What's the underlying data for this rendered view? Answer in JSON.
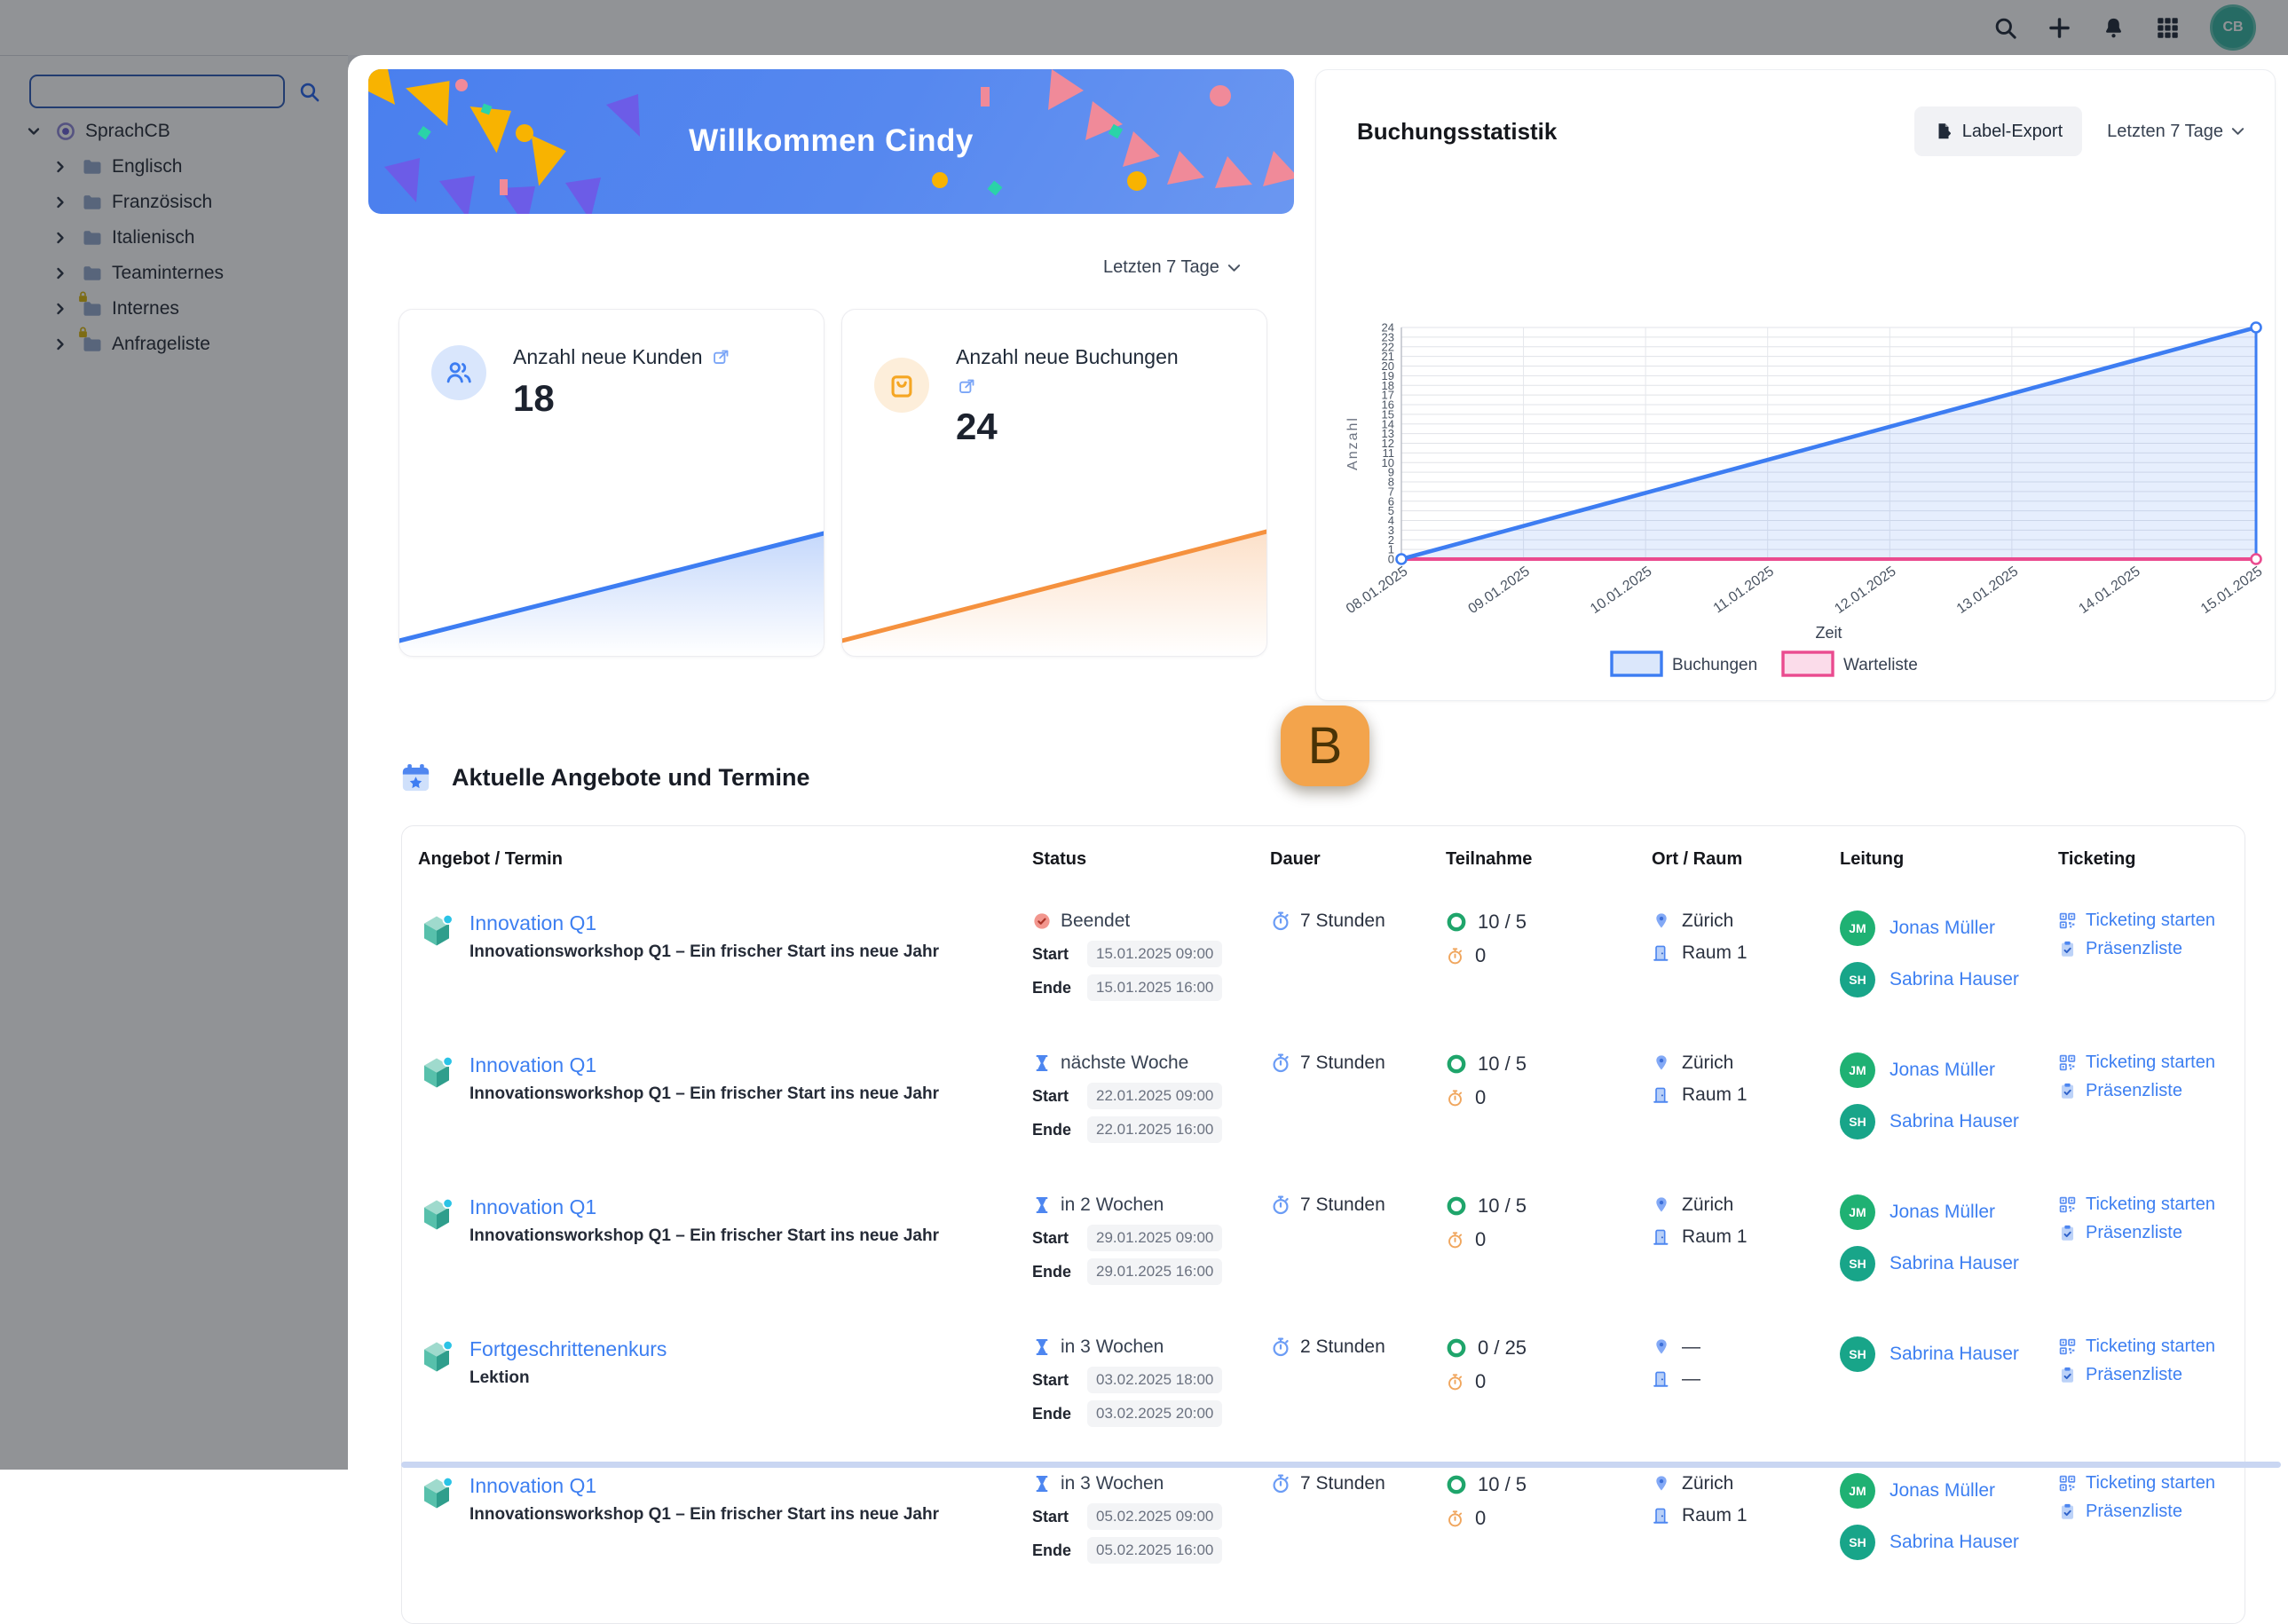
{
  "topbar": {
    "icons": [
      "search",
      "plus",
      "bell",
      "grid"
    ],
    "avatar_initials": "CB"
  },
  "sidebar": {
    "tabs": [
      "tree",
      "archive",
      "trash",
      "home"
    ],
    "search": {
      "value": "",
      "placeholder": ""
    },
    "tree": {
      "root": {
        "label": "SprachCB"
      },
      "items": [
        {
          "label": "Englisch",
          "locked": false
        },
        {
          "label": "Französisch",
          "locked": false
        },
        {
          "label": "Italienisch",
          "locked": false
        },
        {
          "label": "Teaminternes",
          "locked": false
        },
        {
          "label": "Internes",
          "locked": true
        },
        {
          "label": "Anfrageliste",
          "locked": true
        }
      ]
    }
  },
  "main": {
    "welcome": {
      "title": "Willkommen Cindy"
    },
    "stats": {
      "range_label": "Letzten 7 Tage",
      "cards": [
        {
          "label": "Anzahl neue Kunden",
          "value": "18",
          "accent": "#3d7df2",
          "icon": "users",
          "link_inline": true
        },
        {
          "label": "Anzahl neue Buchungen",
          "value": "24",
          "accent": "#f5913e",
          "icon": "bag",
          "link_inline": false
        }
      ]
    },
    "chart_card": {
      "title": "Buchungsstatistik",
      "export_label": "Label-Export",
      "range_label": "Letzten 7 Tage"
    },
    "marker": {
      "label": "B"
    },
    "section": {
      "title": "Aktuelle Angebote und Termine"
    },
    "table": {
      "headers": [
        "Angebot / Termin",
        "Status",
        "Dauer",
        "Teilnahme",
        "Ort / Raum",
        "Leitung",
        "Ticketing"
      ],
      "labels": {
        "start": "Start",
        "ende": "Ende"
      },
      "rows": [
        {
          "title": "Innovation Q1",
          "subtitle": "Innovationsworkshop Q1 – Ein frischer Start ins neue Jahr",
          "status": {
            "type": "beendet",
            "label": "Beendet",
            "start": "15.01.2025 09:00",
            "ende": "15.01.2025 16:00"
          },
          "duration": "7 Stunden",
          "participation": {
            "booked": "10 / 5",
            "waitlist": "0"
          },
          "location": {
            "city": "Zürich",
            "room": "Raum 1"
          },
          "leaders": [
            {
              "initials": "JM",
              "name": "Jonas Müller"
            },
            {
              "initials": "SH",
              "name": "Sabrina Hauser"
            }
          ],
          "ticketing": [
            "Ticketing starten",
            "Präsenzliste"
          ]
        },
        {
          "title": "Innovation Q1",
          "subtitle": "Innovationsworkshop Q1 – Ein frischer Start ins neue Jahr",
          "status": {
            "type": "upcoming",
            "label": "nächste Woche",
            "start": "22.01.2025 09:00",
            "ende": "22.01.2025 16:00"
          },
          "duration": "7 Stunden",
          "participation": {
            "booked": "10 / 5",
            "waitlist": "0"
          },
          "location": {
            "city": "Zürich",
            "room": "Raum 1"
          },
          "leaders": [
            {
              "initials": "JM",
              "name": "Jonas Müller"
            },
            {
              "initials": "SH",
              "name": "Sabrina Hauser"
            }
          ],
          "ticketing": [
            "Ticketing starten",
            "Präsenzliste"
          ]
        },
        {
          "title": "Innovation Q1",
          "subtitle": "Innovationsworkshop Q1 – Ein frischer Start ins neue Jahr",
          "status": {
            "type": "upcoming",
            "label": "in 2 Wochen",
            "start": "29.01.2025 09:00",
            "ende": "29.01.2025 16:00"
          },
          "duration": "7 Stunden",
          "participation": {
            "booked": "10 / 5",
            "waitlist": "0"
          },
          "location": {
            "city": "Zürich",
            "room": "Raum 1"
          },
          "leaders": [
            {
              "initials": "JM",
              "name": "Jonas Müller"
            },
            {
              "initials": "SH",
              "name": "Sabrina Hauser"
            }
          ],
          "ticketing": [
            "Ticketing starten",
            "Präsenzliste"
          ]
        },
        {
          "title": "Fortgeschrittenenkurs",
          "subtitle": "Lektion",
          "status": {
            "type": "upcoming",
            "label": "in 3 Wochen",
            "start": "03.02.2025 18:00",
            "ende": "03.02.2025 20:00"
          },
          "duration": "2 Stunden",
          "participation": {
            "booked": "0 / 25",
            "waitlist": "0"
          },
          "location": {
            "city": "—",
            "room": "—"
          },
          "leaders": [
            {
              "initials": "SH",
              "name": "Sabrina Hauser"
            }
          ],
          "ticketing": [
            "Ticketing starten",
            "Präsenzliste"
          ]
        },
        {
          "title": "Innovation Q1",
          "subtitle": "Innovationsworkshop Q1 – Ein frischer Start ins neue Jahr",
          "status": {
            "type": "upcoming",
            "label": "in 3 Wochen",
            "start": "05.02.2025 09:00",
            "ende": "05.02.2025 16:00"
          },
          "duration": "7 Stunden",
          "participation": {
            "booked": "10 / 5",
            "waitlist": "0"
          },
          "location": {
            "city": "Zürich",
            "room": "Raum 1"
          },
          "leaders": [
            {
              "initials": "JM",
              "name": "Jonas Müller"
            },
            {
              "initials": "SH",
              "name": "Sabrina Hauser"
            }
          ],
          "ticketing": [
            "Ticketing starten",
            "Präsenzliste"
          ]
        }
      ]
    }
  },
  "colors": {
    "accent_blue": "#3d7df2",
    "accent_orange": "#f5913e",
    "waitlist_pink": "#ea4b8f",
    "marker_orange": "#f3a44c",
    "avatar_green": "#1fb173",
    "avatar_teal": "#35b3a0",
    "done_red": "#f2968e"
  },
  "chart_data": [
    {
      "type": "line",
      "title": "Buchungsstatistik",
      "x": [
        "08.01.2025",
        "09.01.2025",
        "10.01.2025",
        "11.01.2025",
        "12.01.2025",
        "13.01.2025",
        "14.01.2025",
        "15.01.2025"
      ],
      "series": [
        {
          "name": "Buchungen",
          "color": "#3d7df2",
          "fill": "#dbe7fb",
          "values": [
            0,
            3.4,
            6.9,
            10.3,
            13.7,
            17.1,
            20.6,
            24
          ]
        },
        {
          "name": "Warteliste",
          "color": "#ea4b8f",
          "fill": "#fbdcea",
          "values": [
            0,
            0,
            0,
            0,
            0,
            0,
            0,
            0
          ]
        }
      ],
      "xlabel": "Zeit",
      "ylabel": "Anzahl",
      "ylim": [
        0,
        24
      ],
      "ytick_step": 1,
      "grid": true,
      "legend_position": "bottom"
    },
    {
      "type": "line",
      "title": "Anzahl neue Kunden (Trend)",
      "values": [
        0,
        18
      ],
      "color": "#3d7df2"
    },
    {
      "type": "line",
      "title": "Anzahl neue Buchungen (Trend)",
      "values": [
        0,
        24
      ],
      "color": "#f5913e"
    }
  ]
}
